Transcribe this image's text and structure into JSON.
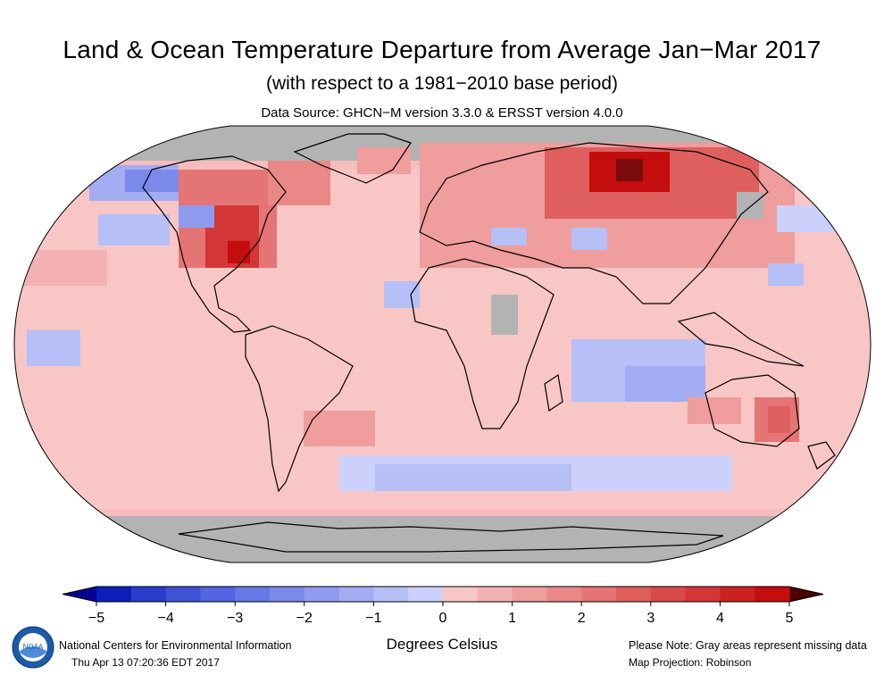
{
  "header": {
    "title": "Land & Ocean Temperature Departure from Average Jan−Mar 2017",
    "subtitle": "(with respect to a 1981−2010 base period)",
    "source": "Data Source: GHCN−M version 3.3.0 & ERSST version 4.0.0"
  },
  "map": {
    "projection": "Robinson",
    "missing_color": "#b3b3b3",
    "coast_color": "#000000"
  },
  "colorbar": {
    "tick_labels": [
      "−5",
      "−4",
      "−3",
      "−2",
      "−1",
      "0",
      "1",
      "2",
      "3",
      "4",
      "5"
    ],
    "colors": [
      "#0a1fb9",
      "#2a3dcc",
      "#3f52d8",
      "#5365e0",
      "#6677e6",
      "#7a89ea",
      "#8e9bee",
      "#a2adf2",
      "#b6bff6",
      "#cbd1fa",
      "#f9c6c6",
      "#f4b1b1",
      "#ef9d9d",
      "#ea8888",
      "#e57474",
      "#df5f5f",
      "#d94a4a",
      "#d33636",
      "#cc2121",
      "#c40d0d"
    ],
    "end_low": "#08008f",
    "end_high": "#4a0000",
    "units": "Degrees Celsius"
  },
  "footer": {
    "org": "National Centers for Environmental Information",
    "timestamp": "Thu Apr 13 07:20:36 EDT 2017",
    "note": "Please Note: Gray areas represent missing data",
    "projection": "Map Projection: Robinson",
    "logo_text": "NOAA"
  }
}
